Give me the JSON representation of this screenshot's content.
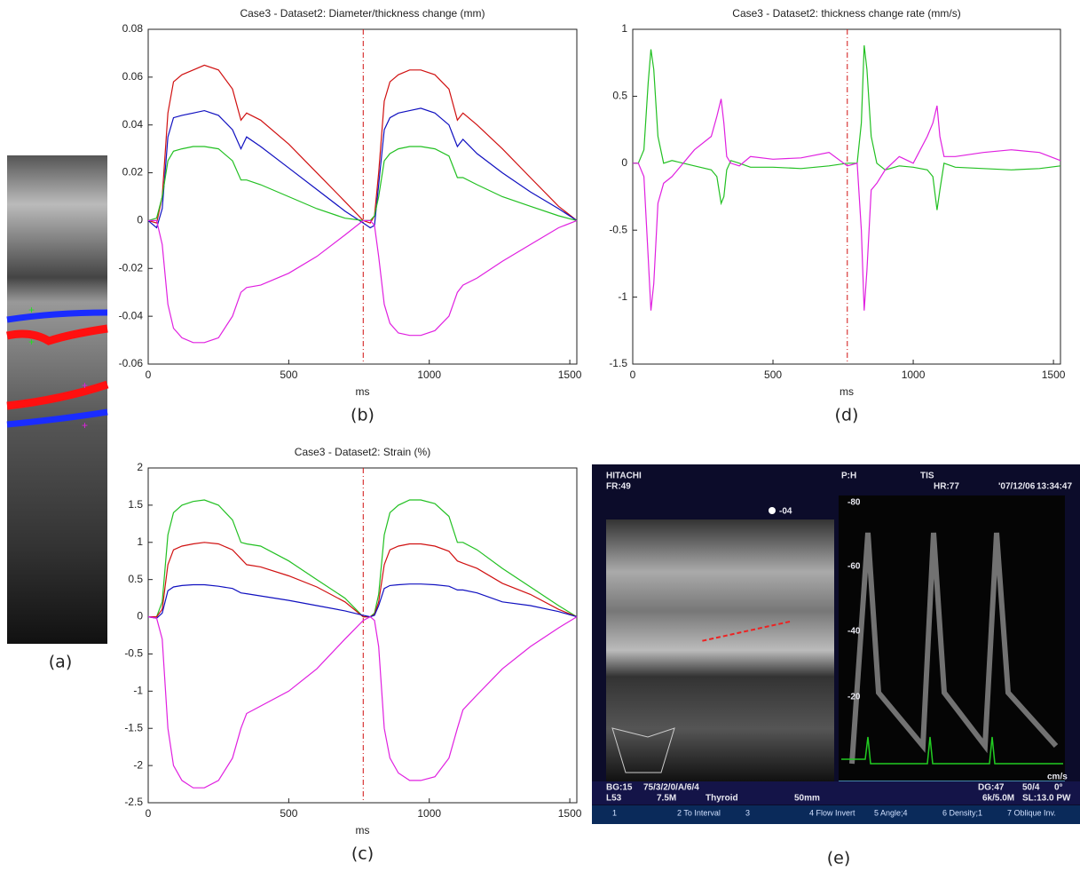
{
  "chart_data": [
    {
      "type": "line",
      "title": "Case3 - Dataset2: Diameter/thickness change (mm)",
      "xlabel": "ms",
      "caption": "(b)",
      "x": [
        0,
        30,
        50,
        70,
        90,
        120,
        160,
        200,
        250,
        300,
        330,
        350,
        400,
        500,
        600,
        700,
        765,
        790,
        805,
        820,
        840,
        860,
        890,
        930,
        970,
        1020,
        1070,
        1100,
        1120,
        1170,
        1260,
        1360,
        1460,
        1525
      ],
      "series": [
        {
          "color": "#d01010",
          "values": [
            0,
            -0.001,
            0.01,
            0.045,
            0.058,
            0.061,
            0.063,
            0.065,
            0.063,
            0.055,
            0.042,
            0.045,
            0.042,
            0.032,
            0.02,
            0.008,
            0,
            -0.001,
            0.002,
            0.02,
            0.05,
            0.058,
            0.061,
            0.063,
            0.063,
            0.061,
            0.055,
            0.042,
            0.045,
            0.04,
            0.03,
            0.018,
            0.006,
            0
          ]
        },
        {
          "color": "#1010c0",
          "values": [
            0,
            -0.003,
            0.005,
            0.035,
            0.043,
            0.044,
            0.045,
            0.046,
            0.044,
            0.038,
            0.03,
            0.035,
            0.031,
            0.022,
            0.013,
            0.004,
            -0.001,
            -0.003,
            -0.002,
            0.015,
            0.038,
            0.043,
            0.045,
            0.046,
            0.047,
            0.045,
            0.04,
            0.031,
            0.034,
            0.028,
            0.02,
            0.012,
            0.005,
            0
          ]
        },
        {
          "color": "#22c022",
          "values": [
            0,
            0.001,
            0.01,
            0.025,
            0.029,
            0.03,
            0.031,
            0.031,
            0.03,
            0.025,
            0.017,
            0.017,
            0.015,
            0.01,
            0.005,
            0.001,
            0,
            0,
            0.002,
            0.01,
            0.025,
            0.028,
            0.03,
            0.031,
            0.031,
            0.03,
            0.027,
            0.018,
            0.018,
            0.015,
            0.01,
            0.006,
            0.002,
            0
          ]
        },
        {
          "color": "#e020e0",
          "values": [
            0,
            0,
            -0.01,
            -0.035,
            -0.045,
            -0.049,
            -0.051,
            -0.051,
            -0.049,
            -0.04,
            -0.03,
            -0.028,
            -0.027,
            -0.022,
            -0.015,
            -0.006,
            0,
            0,
            -0.002,
            -0.015,
            -0.035,
            -0.043,
            -0.047,
            -0.048,
            -0.048,
            -0.046,
            -0.04,
            -0.03,
            -0.027,
            -0.024,
            -0.017,
            -0.01,
            -0.003,
            0
          ]
        }
      ],
      "vline": 765,
      "xlim": [
        0,
        1525
      ],
      "xticks": [
        0,
        500,
        1000,
        1500
      ],
      "ylim": [
        -0.06,
        0.08
      ],
      "yticks": [
        -0.06,
        -0.04,
        -0.02,
        0,
        0.02,
        0.04,
        0.06,
        0.08
      ]
    },
    {
      "type": "line",
      "title": "Case3 - Dataset2: thickness change rate (mm/s)",
      "xlabel": "ms",
      "caption": "(d)",
      "x": [
        0,
        20,
        40,
        55,
        65,
        75,
        90,
        110,
        140,
        180,
        220,
        280,
        300,
        315,
        325,
        335,
        350,
        380,
        420,
        500,
        600,
        700,
        765,
        800,
        815,
        825,
        835,
        850,
        870,
        900,
        950,
        1000,
        1050,
        1070,
        1085,
        1095,
        1110,
        1150,
        1250,
        1350,
        1450,
        1525
      ],
      "series": [
        {
          "color": "#22c022",
          "values": [
            0,
            0,
            0.1,
            0.6,
            0.85,
            0.7,
            0.2,
            0,
            0.02,
            0,
            -0.02,
            -0.05,
            -0.1,
            -0.3,
            -0.25,
            -0.05,
            0.02,
            0,
            -0.03,
            -0.03,
            -0.04,
            -0.02,
            0,
            0,
            0.3,
            0.88,
            0.7,
            0.2,
            0,
            -0.05,
            -0.02,
            -0.03,
            -0.05,
            -0.1,
            -0.35,
            -0.2,
            0,
            -0.03,
            -0.04,
            -0.05,
            -0.04,
            -0.02
          ]
        },
        {
          "color": "#e020e0",
          "values": [
            0,
            0,
            -0.1,
            -0.7,
            -1.1,
            -0.9,
            -0.3,
            -0.15,
            -0.1,
            0,
            0.1,
            0.2,
            0.35,
            0.48,
            0.3,
            0.05,
            0,
            -0.02,
            0.05,
            0.03,
            0.04,
            0.08,
            -0.02,
            0,
            -0.5,
            -1.1,
            -0.8,
            -0.2,
            -0.15,
            -0.05,
            0.05,
            0,
            0.2,
            0.3,
            0.43,
            0.2,
            0.05,
            0.05,
            0.08,
            0.1,
            0.08,
            0.02
          ]
        }
      ],
      "vline": 765,
      "xlim": [
        0,
        1525
      ],
      "xticks": [
        0,
        500,
        1000,
        1500
      ],
      "ylim": [
        -1.5,
        1
      ],
      "yticks": [
        -1.5,
        -1,
        -0.5,
        0,
        0.5,
        1
      ]
    },
    {
      "type": "line",
      "title": "Case3 - Dataset2: Strain (%)",
      "xlabel": "ms",
      "caption": "(c)",
      "x": [
        0,
        30,
        50,
        70,
        90,
        120,
        160,
        200,
        250,
        300,
        330,
        350,
        400,
        500,
        600,
        700,
        765,
        790,
        805,
        820,
        840,
        860,
        890,
        930,
        970,
        1020,
        1070,
        1100,
        1120,
        1170,
        1260,
        1360,
        1460,
        1525
      ],
      "series": [
        {
          "color": "#22c022",
          "values": [
            0,
            0,
            0.2,
            1.1,
            1.4,
            1.5,
            1.55,
            1.57,
            1.5,
            1.3,
            1.0,
            0.98,
            0.95,
            0.75,
            0.5,
            0.25,
            0,
            0,
            0.05,
            0.3,
            1.1,
            1.4,
            1.5,
            1.57,
            1.57,
            1.52,
            1.35,
            1.0,
            1.0,
            0.9,
            0.65,
            0.4,
            0.15,
            0
          ]
        },
        {
          "color": "#d01010",
          "values": [
            0,
            0,
            0.1,
            0.7,
            0.9,
            0.95,
            0.98,
            1.0,
            0.98,
            0.9,
            0.78,
            0.7,
            0.67,
            0.55,
            0.4,
            0.2,
            0,
            0,
            0.03,
            0.2,
            0.7,
            0.9,
            0.95,
            0.98,
            0.98,
            0.95,
            0.88,
            0.75,
            0.72,
            0.65,
            0.45,
            0.3,
            0.1,
            0
          ]
        },
        {
          "color": "#1010c0",
          "values": [
            0,
            -0.02,
            0.05,
            0.35,
            0.4,
            0.42,
            0.43,
            0.43,
            0.41,
            0.38,
            0.32,
            0.31,
            0.28,
            0.22,
            0.15,
            0.08,
            0.02,
            0,
            0.02,
            0.15,
            0.38,
            0.42,
            0.43,
            0.44,
            0.44,
            0.43,
            0.41,
            0.36,
            0.36,
            0.32,
            0.2,
            0.15,
            0.07,
            0
          ]
        },
        {
          "color": "#e020e0",
          "values": [
            0,
            -0.02,
            -0.3,
            -1.5,
            -2.0,
            -2.2,
            -2.3,
            -2.3,
            -2.2,
            -1.9,
            -1.5,
            -1.3,
            -1.2,
            -1.0,
            -0.7,
            -0.3,
            -0.05,
            0,
            -0.05,
            -0.4,
            -1.5,
            -1.9,
            -2.1,
            -2.2,
            -2.2,
            -2.15,
            -1.9,
            -1.5,
            -1.25,
            -1.05,
            -0.7,
            -0.4,
            -0.15,
            0
          ]
        }
      ],
      "vline": 765,
      "xlim": [
        0,
        1525
      ],
      "xticks": [
        0,
        500,
        1000,
        1500
      ],
      "ylim": [
        -2.5,
        2
      ],
      "yticks": [
        -2.5,
        -2,
        -1.5,
        -1,
        -0.5,
        0,
        0.5,
        1,
        1.5,
        2
      ]
    }
  ],
  "image_a": {
    "caption": "(a)"
  },
  "ultrasound": {
    "caption": "(e)",
    "brand": "HITACHI",
    "frame_rate": "FR:49",
    "probe": "P:H",
    "tis": "TIS",
    "heart_rate": "HR:77",
    "date": "'07/12/06",
    "time": "13:34:47",
    "depth_marker": "-04",
    "scale": [
      "-80",
      "-60",
      "-40",
      "-20"
    ],
    "scale_unit": "cm/s",
    "status": [
      [
        "BG:15",
        "75/3/2/0/A/6/4",
        "DG:47",
        "50/4",
        "0°"
      ],
      [
        "L53",
        "7.5M",
        "Thyroid",
        "50mm",
        "6k/5.0M",
        "SL:13.0 PW"
      ]
    ],
    "menu": [
      "1",
      "2 To Interval",
      "3",
      "4 Flow Invert",
      "5 Angle;4",
      "6 Density;1",
      "7 Oblique Inv."
    ]
  }
}
